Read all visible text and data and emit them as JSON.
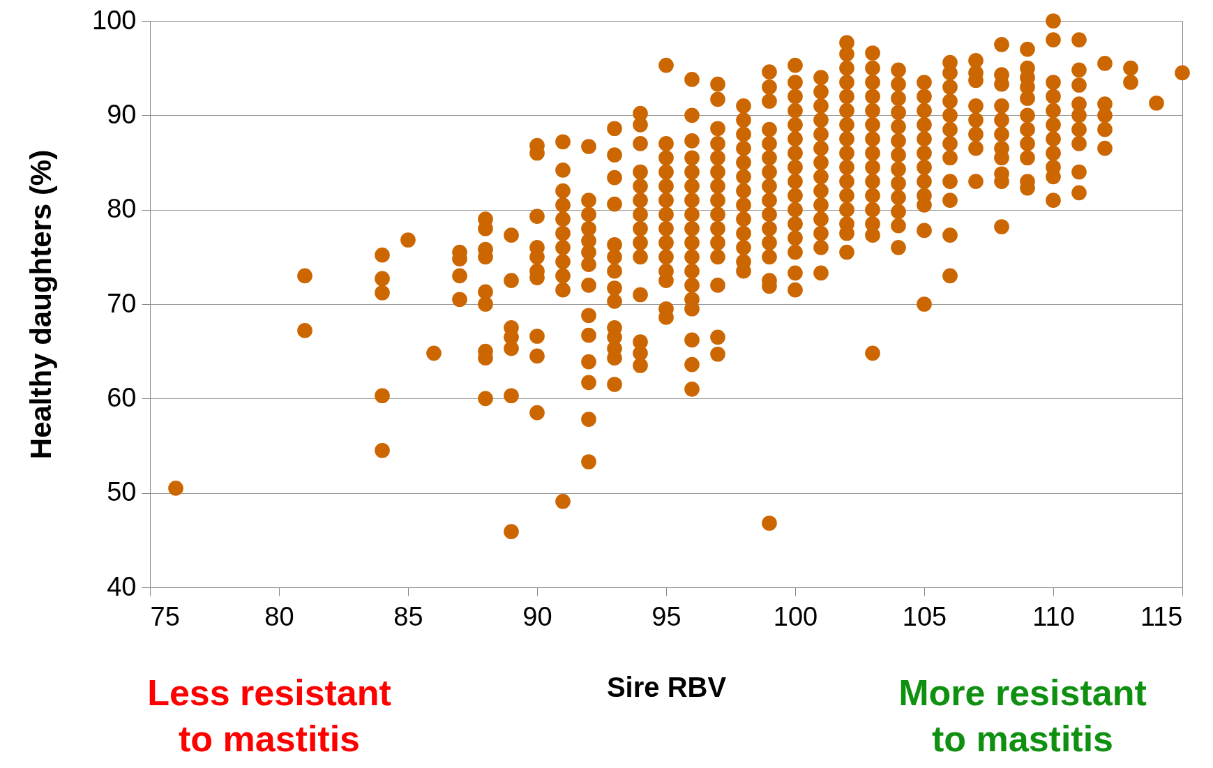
{
  "chart_data": {
    "type": "scatter",
    "xlabel": "Sire RBV",
    "ylabel": "Healthy daughters (%)",
    "annotations": [
      "Less resistant to mastitis",
      "More resistant to mastitis"
    ],
    "xlim": [
      75,
      115
    ],
    "xticks": [
      75,
      80,
      85,
      90,
      95,
      100,
      105,
      110,
      115
    ],
    "ylim": [
      40,
      100
    ],
    "yticks": [
      40,
      50,
      60,
      70,
      80,
      90,
      100
    ],
    "grid": "y",
    "marker": "circle",
    "series": [
      {
        "color": "#cc6600",
        "x": [
          76,
          81,
          81,
          84,
          84,
          84,
          84,
          84,
          85,
          86,
          87,
          87,
          87,
          87,
          88,
          88,
          88,
          88,
          88,
          88,
          88,
          88,
          88,
          89,
          89,
          89,
          89,
          89,
          89,
          89,
          90,
          90,
          90,
          90,
          90,
          90,
          90,
          90,
          90,
          90,
          91,
          91,
          91,
          91,
          91,
          91,
          91,
          91,
          91,
          91,
          91,
          92,
          92,
          92,
          92,
          92,
          92,
          92,
          92,
          92,
          92,
          92,
          92,
          92,
          92,
          93,
          93,
          93,
          93,
          93,
          93,
          93,
          93,
          93,
          93,
          93,
          93,
          93,
          93,
          94,
          94,
          94,
          94,
          94,
          94,
          94,
          94,
          94,
          94,
          94,
          94,
          94,
          94,
          95,
          95,
          95,
          95,
          95,
          95,
          95,
          95,
          95,
          95,
          95,
          95,
          95,
          95,
          96,
          96,
          96,
          96,
          96,
          96,
          96,
          96,
          96,
          96,
          96,
          96,
          96,
          96,
          96,
          96,
          96,
          96,
          97,
          97,
          97,
          97,
          97,
          97,
          97,
          97,
          97,
          97,
          97,
          97,
          97,
          97,
          97,
          98,
          98,
          98,
          98,
          98,
          98,
          98,
          98,
          98,
          98,
          98,
          98,
          98,
          99,
          99,
          99,
          99,
          99,
          99,
          99,
          99,
          99,
          99,
          99,
          99,
          99,
          99,
          99,
          99,
          100,
          100,
          100,
          100,
          100,
          100,
          100,
          100,
          100,
          100,
          100,
          100,
          100,
          100,
          100,
          100,
          101,
          101,
          101,
          101,
          101,
          101,
          101,
          101,
          101,
          101,
          101,
          101,
          101,
          101,
          102,
          102,
          102,
          102,
          102,
          102,
          102,
          102,
          102,
          102,
          102,
          102,
          102,
          102,
          102,
          102,
          103,
          103,
          103,
          103,
          103,
          103,
          103,
          103,
          103,
          103,
          103,
          103,
          103,
          103,
          103,
          104,
          104,
          104,
          104,
          104,
          104,
          104,
          104,
          104,
          104,
          104,
          104,
          104,
          105,
          105,
          105,
          105,
          105,
          105,
          105,
          105,
          105,
          105,
          105,
          105,
          106,
          106,
          106,
          106,
          106,
          106,
          106,
          106,
          106,
          106,
          106,
          106,
          107,
          107,
          107,
          107,
          107,
          107,
          107,
          107,
          108,
          108,
          108,
          108,
          108,
          108,
          108,
          108,
          108,
          108,
          108,
          109,
          109,
          109,
          109,
          109,
          109,
          109,
          109,
          109,
          109,
          109,
          110,
          110,
          110,
          110,
          110,
          110,
          110,
          110,
          110,
          110,
          110,
          111,
          111,
          111,
          111,
          111,
          111,
          111,
          111,
          111,
          112,
          112,
          112,
          112,
          112,
          113,
          113,
          114,
          115
        ],
        "values": [
          50.5,
          73,
          67.2,
          75.2,
          72.7,
          71.2,
          60.3,
          54.5,
          76.8,
          64.8,
          75.5,
          74.8,
          73,
          70.5,
          79,
          78,
          75.8,
          75,
          71.3,
          70,
          65,
          64.3,
          60,
          77.3,
          72.5,
          67.5,
          66.5,
          65.3,
          60.3,
          45.9,
          86.8,
          86,
          79.3,
          76,
          75,
          73.5,
          72.8,
          66.6,
          64.5,
          58.5,
          87.2,
          84.2,
          82,
          80.5,
          79,
          77.5,
          76,
          74.5,
          73,
          71.5,
          49.1,
          86.7,
          81,
          79.5,
          78,
          76.7,
          75.5,
          74.2,
          72,
          68.8,
          66.7,
          63.9,
          61.7,
          57.8,
          53.3,
          88.6,
          85.8,
          83.4,
          80.6,
          76.3,
          75,
          73.5,
          71.7,
          70.3,
          67.5,
          66.5,
          65.3,
          64.3,
          61.5,
          90.2,
          89,
          87,
          84,
          82.5,
          81,
          79.5,
          78,
          76.5,
          75,
          71,
          66,
          64.8,
          63.5,
          95.3,
          87,
          85.5,
          84,
          82.5,
          81,
          79.5,
          78,
          76.5,
          75,
          73.5,
          72.5,
          69.5,
          68.6,
          93.8,
          90,
          87.3,
          85.5,
          84,
          82.5,
          81,
          79.5,
          78,
          76.5,
          75,
          73.5,
          72,
          70.5,
          69.5,
          66.2,
          63.6,
          61,
          93.3,
          91.7,
          88.6,
          87,
          85.5,
          84,
          82.5,
          81,
          79.5,
          78,
          76.5,
          75,
          72,
          66.5,
          64.7,
          91,
          89.5,
          88,
          86.5,
          85,
          83.5,
          82,
          80.5,
          79,
          77.5,
          76,
          74.5,
          73.5,
          94.6,
          93,
          91.5,
          88.5,
          87,
          85.5,
          84,
          82.5,
          81,
          79.5,
          78,
          76.5,
          75,
          72.5,
          71.9,
          46.8,
          95.3,
          93.5,
          92,
          90.5,
          89,
          87.5,
          86,
          84.5,
          83,
          81.5,
          80,
          78.5,
          77,
          75.5,
          73.3,
          71.5,
          94,
          92.5,
          91,
          89.5,
          88,
          86.5,
          85,
          83.5,
          82,
          80.5,
          79,
          77.5,
          76,
          73.3,
          97.7,
          96.5,
          95,
          93.5,
          92,
          90.5,
          89,
          87.5,
          86,
          84.5,
          83,
          81.5,
          80,
          78.5,
          77.5,
          75.5,
          96.6,
          95,
          93.5,
          92,
          90.5,
          89,
          87.5,
          86,
          84.5,
          83,
          81.5,
          80,
          78.5,
          77.3,
          64.8,
          94.8,
          93.3,
          91.8,
          90.3,
          88.8,
          87.3,
          85.8,
          84.3,
          82.8,
          81.3,
          79.8,
          78.3,
          76,
          93.5,
          92,
          90.5,
          89,
          87.5,
          86,
          84.5,
          83,
          81.5,
          80.5,
          77.8,
          70,
          95.6,
          94.5,
          93,
          91.5,
          90,
          88.5,
          87,
          85.5,
          83,
          81,
          77.3,
          73,
          95.8,
          94.5,
          93.7,
          91,
          89.5,
          88,
          86.5,
          83,
          97.5,
          94.3,
          93.3,
          91,
          89.5,
          88,
          86.5,
          85.5,
          83.8,
          83,
          78.2,
          97,
          95,
          94,
          93,
          91.8,
          90,
          88.5,
          87,
          85.5,
          83,
          82.3,
          100,
          98,
          93.5,
          92,
          90.5,
          89,
          87.5,
          86,
          84.5,
          83.5,
          81,
          98,
          94.8,
          93.2,
          91.2,
          90,
          88.5,
          87,
          84,
          81.8,
          95.5,
          91.2,
          90,
          88.5,
          86.5,
          95,
          93.5,
          91.3,
          94.5
        ]
      }
    ]
  }
}
